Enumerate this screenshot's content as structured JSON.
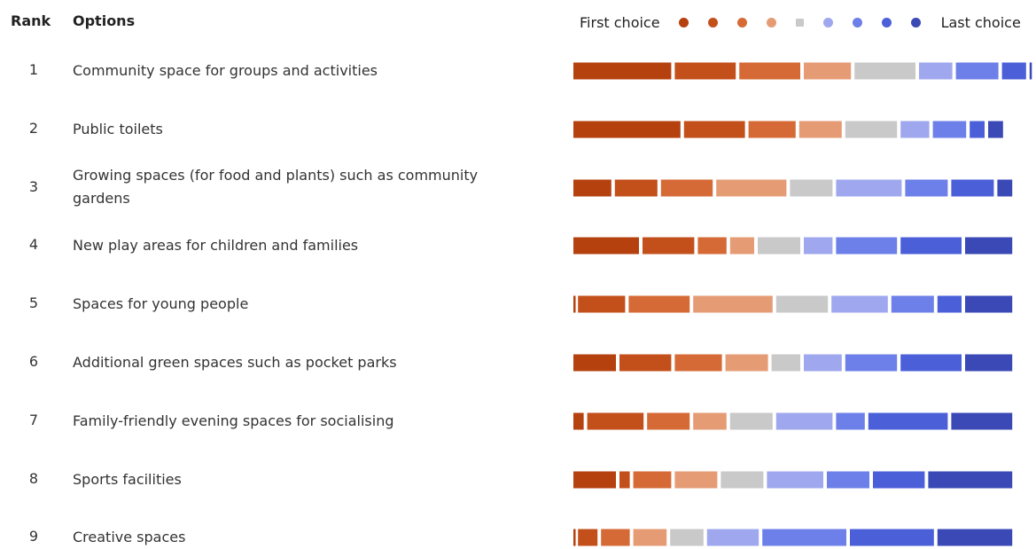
{
  "header": {
    "rank_label": "Rank",
    "options_label": "Options",
    "legend_first": "First choice",
    "legend_last": "Last choice"
  },
  "palette": [
    "#b5410f",
    "#c34f1b",
    "#d56a36",
    "#e59c74",
    "#c9c9c9",
    "#9fa8ee",
    "#6d7fe8",
    "#4b5fd9",
    "#3a49b5"
  ],
  "chart_data": {
    "type": "bar",
    "stacked": true,
    "xlim": [
      0,
      100
    ],
    "categories": [
      "Community space for groups and activities",
      "Public toilets",
      "Growing spaces (for food and plants) such as community gardens",
      "New play areas for children and families",
      "Spaces for young people",
      "Additional green spaces such as pocket parks",
      "Family-friendly evening spaces for socialising",
      "Sports facilities",
      "Creative spaces"
    ],
    "ranks": [
      "1",
      "2",
      "3",
      "4",
      "5",
      "6",
      "7",
      "8",
      "9"
    ],
    "series": [
      {
        "name": "First choice",
        "values": [
          22,
          24,
          9,
          15,
          1,
          10,
          3,
          10,
          1
        ]
      },
      {
        "name": "2",
        "values": [
          14,
          14,
          10,
          12,
          11,
          12,
          13,
          3,
          5
        ]
      },
      {
        "name": "3",
        "values": [
          14,
          11,
          12,
          7,
          14,
          11,
          10,
          9,
          7
        ]
      },
      {
        "name": "4",
        "values": [
          11,
          10,
          16,
          6,
          18,
          10,
          8,
          10,
          8
        ]
      },
      {
        "name": "5",
        "values": [
          14,
          12,
          10,
          10,
          12,
          7,
          10,
          10,
          8
        ]
      },
      {
        "name": "6",
        "values": [
          8,
          7,
          15,
          7,
          13,
          9,
          13,
          13,
          12
        ]
      },
      {
        "name": "7",
        "values": [
          10,
          8,
          10,
          14,
          10,
          12,
          7,
          10,
          19
        ]
      },
      {
        "name": "8",
        "values": [
          6,
          4,
          10,
          14,
          6,
          14,
          18,
          12,
          19
        ]
      },
      {
        "name": "Last choice",
        "values": [
          1,
          4,
          4,
          11,
          11,
          11,
          14,
          19,
          17
        ]
      }
    ]
  }
}
